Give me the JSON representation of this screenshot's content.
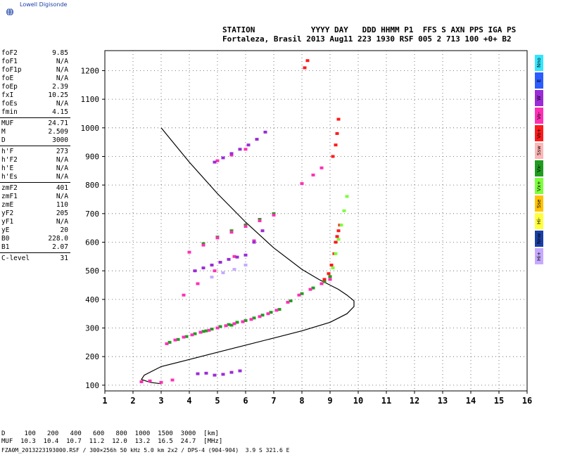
{
  "logo": {
    "name": "Lowell Digisonde",
    "icon": "globe-icon"
  },
  "header": {
    "line1": "STATION            YYYY DAY   DDD HHMM P1  FFS S AXN PPS IGA PS",
    "line2": "Fortaleza, Brasil 2013 Aug11 223 1930 RSF 005 2 713 100 +0+ B2"
  },
  "params": [
    {
      "label": "foF2",
      "value": "9.85"
    },
    {
      "label": "foF1",
      "value": "N/A"
    },
    {
      "label": "foF1p",
      "value": "N/A"
    },
    {
      "label": "foE",
      "value": "N/A"
    },
    {
      "label": "foEp",
      "value": "2.39"
    },
    {
      "label": "fxI",
      "value": "10.25"
    },
    {
      "label": "foEs",
      "value": "N/A"
    },
    {
      "label": "fmin",
      "value": "4.15"
    },
    {
      "sep": true
    },
    {
      "label": "MUF",
      "value": "24.71"
    },
    {
      "label": "M",
      "value": "2.509"
    },
    {
      "label": "D",
      "value": "3000"
    },
    {
      "sep": true
    },
    {
      "label": "h'F",
      "value": "273"
    },
    {
      "label": "h'F2",
      "value": "N/A"
    },
    {
      "label": "h'E",
      "value": "N/A"
    },
    {
      "label": "h'Es",
      "value": "N/A"
    },
    {
      "sep": true
    },
    {
      "label": "zmF2",
      "value": "401"
    },
    {
      "label": "zmF1",
      "value": "N/A"
    },
    {
      "label": "zmE",
      "value": "110"
    },
    {
      "label": "yF2",
      "value": "205"
    },
    {
      "label": "yF1",
      "value": "N/A"
    },
    {
      "label": "yE",
      "value": "20"
    },
    {
      "label": "B0",
      "value": "228.0"
    },
    {
      "label": "B1",
      "value": "2.07"
    },
    {
      "sep": true
    },
    {
      "label": "C-level",
      "value": "31"
    }
  ],
  "legend": [
    {
      "label": "Nno",
      "color": "#33e6ff"
    },
    {
      "label": "E",
      "color": "#2b5cff"
    },
    {
      "label": "W",
      "color": "#9b2bd6"
    },
    {
      "label": "Vo-",
      "color": "#ff2fb4"
    },
    {
      "label": "Vo+",
      "color": "#ff1a1a"
    },
    {
      "label": "Ssw",
      "color": "#ffb6b6"
    },
    {
      "label": "Vx-",
      "color": "#1f9c1f"
    },
    {
      "label": "Vx+",
      "color": "#7dff3c"
    },
    {
      "label": "Sse",
      "color": "#ffc200"
    },
    {
      "label": "Hi-",
      "color": "#ffff3c"
    },
    {
      "label": "Nnw",
      "color": "#1a3fa6"
    },
    {
      "label": "Hi+",
      "color": "#c6aaff"
    }
  ],
  "chart_data": {
    "type": "scatter",
    "xlabel": "",
    "ylabel": "",
    "xlim": [
      1,
      16
    ],
    "ylim": [
      80,
      1270
    ],
    "x_ticks": [
      "1",
      "2",
      "3",
      "4",
      "5",
      "6",
      "7",
      "8",
      "9",
      "10",
      "11",
      "12",
      "13",
      "14",
      "15",
      "16"
    ],
    "y_ticks": [
      "100",
      "200",
      "300",
      "400",
      "500",
      "600",
      "700",
      "800",
      "900",
      "1000",
      "1100",
      "1200"
    ],
    "grid": true,
    "profile_line": {
      "name": "",
      "x": [
        3.0,
        4.0,
        5.0,
        6.0,
        7.0,
        8.0,
        8.6,
        9.0,
        9.3,
        9.6,
        9.85,
        9.85,
        9.6,
        9.0,
        8.0,
        7.0,
        6.0,
        5.0,
        4.0,
        3.0,
        2.4,
        2.3,
        2.6,
        3.0
      ],
      "y": [
        1000,
        880,
        770,
        670,
        580,
        505,
        470,
        450,
        435,
        415,
        395,
        375,
        350,
        320,
        290,
        265,
        240,
        215,
        190,
        165,
        135,
        120,
        110,
        105
      ]
    },
    "series": [
      {
        "name": "Vx-",
        "x": [
          3.3,
          3.6,
          3.9,
          4.2,
          4.5,
          4.8,
          5.1,
          5.4,
          5.7,
          6.0,
          6.3,
          6.6,
          6.9,
          7.2,
          7.6,
          8.0,
          8.4,
          8.8,
          9.0,
          4.5,
          5.0,
          5.5,
          6.0,
          6.5,
          7.0,
          4.6,
          5.0,
          5.5
        ],
        "y": [
          250,
          260,
          270,
          280,
          288,
          296,
          305,
          312,
          320,
          326,
          335,
          345,
          355,
          365,
          395,
          420,
          440,
          462,
          480,
          595,
          618,
          640,
          660,
          680,
          700,
          290,
          300,
          310
        ]
      },
      {
        "name": "Vo-",
        "x": [
          3.2,
          3.5,
          3.8,
          4.1,
          4.4,
          4.7,
          5.0,
          5.3,
          5.6,
          5.9,
          6.2,
          6.5,
          6.8,
          7.1,
          7.5,
          7.9,
          8.3,
          8.7,
          9.0,
          4.0,
          4.5,
          5.0,
          5.5,
          6.0,
          6.5,
          7.0,
          3.8,
          4.3,
          4.9,
          5.6,
          6.3,
          5.0,
          5.5,
          6.0,
          8.0,
          8.4,
          8.7,
          2.3,
          2.6,
          3.0,
          3.4
        ],
        "y": [
          245,
          258,
          268,
          276,
          285,
          292,
          300,
          308,
          315,
          322,
          330,
          340,
          350,
          362,
          390,
          415,
          435,
          455,
          470,
          565,
          590,
          615,
          635,
          655,
          675,
          695,
          415,
          455,
          500,
          550,
          605,
          885,
          905,
          925,
          805,
          835,
          860,
          112,
          115,
          110,
          118
        ]
      },
      {
        "name": "Vo+",
        "x": [
          8.8,
          8.95,
          9.05,
          9.15,
          9.2,
          9.25,
          9.3,
          9.35,
          9.1,
          9.2,
          9.25,
          9.3,
          8.1,
          8.2
        ],
        "y": [
          470,
          490,
          520,
          560,
          600,
          620,
          640,
          660,
          900,
          940,
          980,
          1030,
          1210,
          1235
        ]
      },
      {
        "name": "Vx+",
        "x": [
          9.1,
          9.2,
          9.3,
          9.4,
          9.5,
          9.6
        ],
        "y": [
          510,
          560,
          610,
          660,
          710,
          760
        ]
      },
      {
        "name": "W",
        "x": [
          4.2,
          4.5,
          4.8,
          5.1,
          5.4,
          5.7,
          6.0,
          6.3,
          6.6,
          4.9,
          5.2,
          5.5,
          5.8,
          6.1,
          6.4,
          6.7,
          4.3,
          4.6,
          4.9,
          5.2,
          5.5,
          5.8
        ],
        "y": [
          500,
          510,
          520,
          530,
          540,
          548,
          555,
          600,
          640,
          880,
          895,
          910,
          925,
          940,
          960,
          985,
          140,
          142,
          135,
          138,
          145,
          150
        ]
      },
      {
        "name": "Hi+",
        "x": [
          4.8,
          5.2,
          5.6,
          6.0
        ],
        "y": [
          478,
          493,
          505,
          520
        ]
      }
    ]
  },
  "footer": {
    "line1": "D     100   200   400   600   800  1000  1500  3000  [km]",
    "line2": "MUF  10.3  10.4  10.7  11.2  12.0  13.2  16.5  24.7  [MHz]",
    "line3": "FZA0M_2013223193000.RSF / 300×256h 50 kHz 5.0 km 2x2 / DPS-4 (904-904)  3.9 S 321.6 E"
  }
}
